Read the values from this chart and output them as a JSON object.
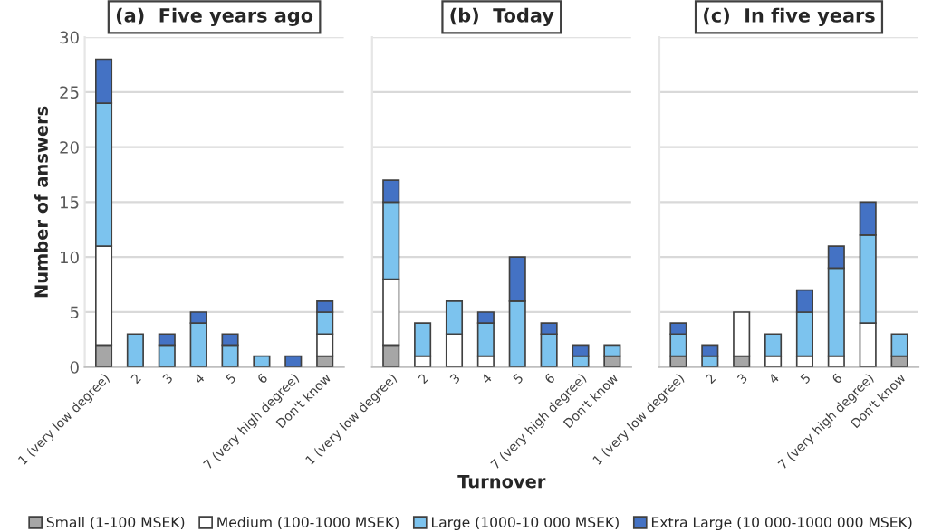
{
  "chart_data": [
    {
      "type": "bar",
      "stacked": true,
      "title": "(a)  Five years ago",
      "ylabel": "Number of answers",
      "ylim": [
        0,
        30
      ],
      "yticks": [
        0,
        5,
        10,
        15,
        20,
        25,
        30
      ],
      "grid": "y",
      "legend": "bottom",
      "categories": [
        "1 (very low degree)",
        "2",
        "3",
        "4",
        "5",
        "6",
        "7 (very high degree)",
        "Don't know"
      ],
      "series": [
        {
          "name": "Small (1-100 MSEK)",
          "color": "#a6a6a6",
          "values": [
            2,
            0,
            0,
            0,
            0,
            0,
            0,
            1
          ]
        },
        {
          "name": "Medium (100-1000 MSEK)",
          "color": "#ffffff",
          "values": [
            9,
            0,
            0,
            0,
            0,
            0,
            0,
            2
          ]
        },
        {
          "name": "Large (1000-10 000 MSEK)",
          "color": "#7cc3ee",
          "values": [
            13,
            3,
            2,
            4,
            2,
            1,
            0,
            2
          ]
        },
        {
          "name": "Extra Large (10 000-1000 000 MSEK)",
          "color": "#4472c4",
          "values": [
            4,
            0,
            1,
            1,
            1,
            0,
            1,
            1
          ]
        }
      ]
    },
    {
      "type": "bar",
      "stacked": true,
      "title": "(b)  Today",
      "xlabel": "Turnover",
      "ylim": [
        0,
        30
      ],
      "yticks": [
        0,
        5,
        10,
        15,
        20,
        25,
        30
      ],
      "grid": "y",
      "tick_labels": "x",
      "categories": [
        "1 (very low degree)",
        "2",
        "3",
        "4",
        "5",
        "6",
        "7 (very high degree)",
        "Don't know"
      ],
      "series": [
        {
          "color": "#a6a6a6",
          "values": [
            2,
            0,
            0,
            0,
            0,
            0,
            0,
            1
          ]
        },
        {
          "color": "#ffffff",
          "values": [
            6,
            1,
            3,
            1,
            0,
            0,
            0,
            0
          ]
        },
        {
          "color": "#7cc3ee",
          "values": [
            7,
            3,
            3,
            3,
            6,
            3,
            1,
            1
          ]
        },
        {
          "color": "#4472c4",
          "values": [
            2,
            0,
            0,
            1,
            4,
            1,
            1,
            0
          ]
        }
      ]
    },
    {
      "type": "bar",
      "stacked": true,
      "title": "(c)  In five years",
      "ylim": [
        0,
        30
      ],
      "yticks": [
        0,
        5,
        10,
        15,
        20,
        25,
        30
      ],
      "grid": "y",
      "tick_labels": "x",
      "categories": [
        "1 (very low degree)",
        "2",
        "3",
        "4",
        "5",
        "6",
        "7 (very high degree)",
        "Don't know"
      ],
      "series": [
        {
          "color": "#a6a6a6",
          "values": [
            1,
            0,
            1,
            0,
            0,
            0,
            0,
            1
          ]
        },
        {
          "color": "#ffffff",
          "values": [
            0,
            0,
            4,
            1,
            1,
            1,
            4,
            0
          ]
        },
        {
          "color": "#7cc3ee",
          "values": [
            2,
            1,
            0,
            2,
            4,
            8,
            8,
            2
          ]
        },
        {
          "color": "#4472c4",
          "values": [
            1,
            1,
            0,
            0,
            2,
            2,
            3,
            0
          ]
        }
      ]
    }
  ]
}
